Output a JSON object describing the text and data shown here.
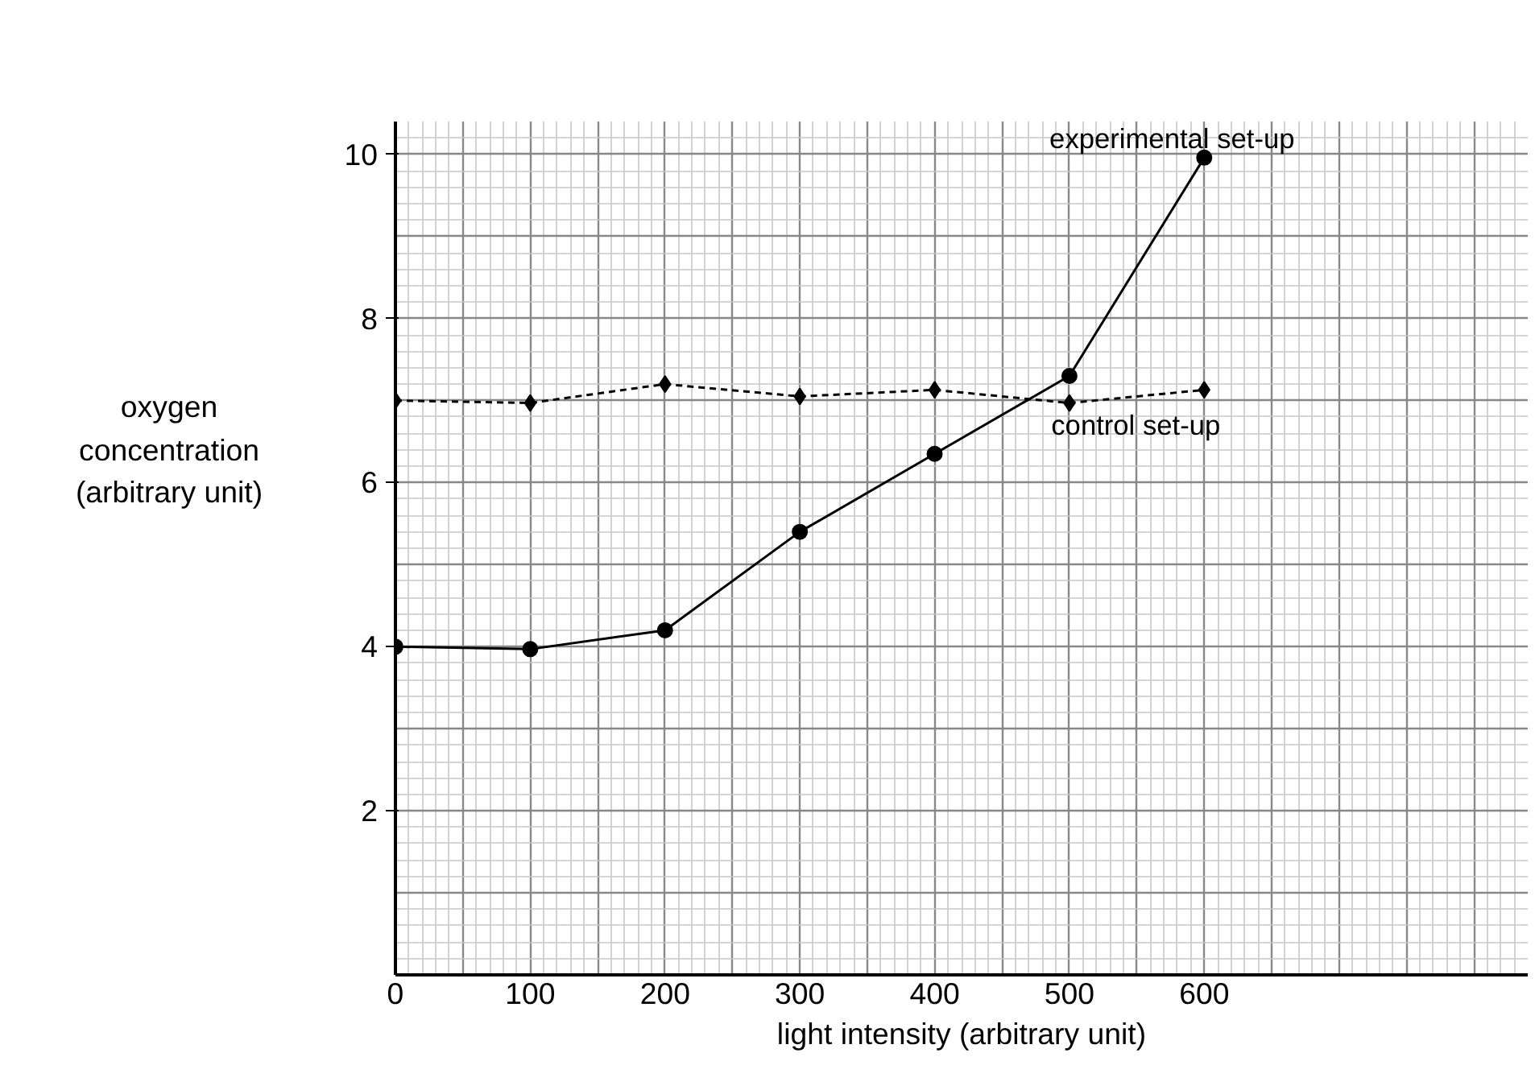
{
  "chart_data": {
    "type": "line",
    "xlabel": "light intensity (arbitrary unit)",
    "ylabel": "oxygen\nconcentration\n(arbitrary unit)",
    "x": [
      0,
      100,
      200,
      300,
      400,
      500,
      600
    ],
    "series": [
      {
        "name": "experimental set-up",
        "color": "#000000",
        "values": [
          4.0,
          3.97,
          4.2,
          5.4,
          6.35,
          7.3,
          9.96
        ],
        "marker": "circle",
        "line_style": "solid"
      },
      {
        "name": "control set-up",
        "color": "#000000",
        "values": [
          7.0,
          6.97,
          7.2,
          7.05,
          7.13,
          6.97,
          7.13
        ],
        "marker": "diamond",
        "line_style": "dashed"
      }
    ],
    "xlim": [
      0,
      840
    ],
    "ylim": [
      0,
      10.4
    ],
    "xticks": [
      0,
      100,
      200,
      300,
      400,
      500,
      600
    ],
    "yticks": [
      2,
      4,
      6,
      8,
      10
    ],
    "grid": true,
    "legend": false
  }
}
